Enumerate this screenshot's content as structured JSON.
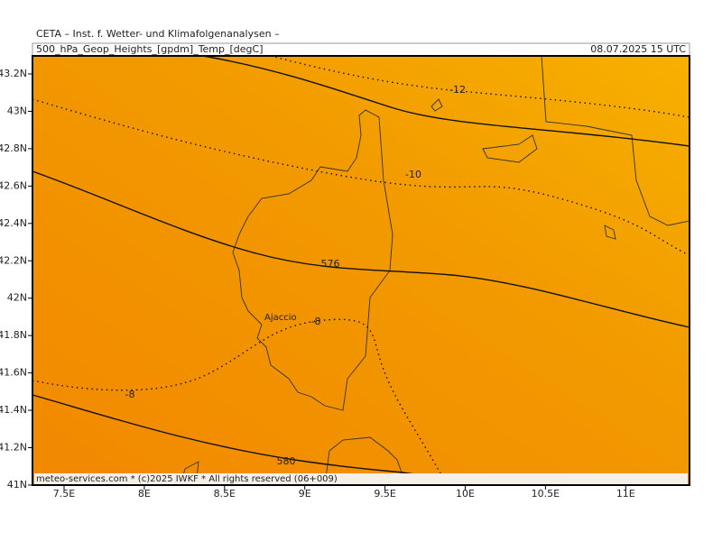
{
  "header": {
    "title": "CETA – Inst. f. Wetter- und Klimafolgenanalysen –",
    "field": "500_hPa_Geop_Heights_[gpdm]_Temp_[degC]",
    "valid_time": "08.07.2025 15 UTC"
  },
  "map": {
    "x_labels": [
      "7.5E",
      "8E",
      "8.5E",
      "9E",
      "9.5E",
      "10E",
      "10.5E",
      "11E"
    ],
    "y_labels": [
      "43.2N",
      "43N",
      "42.8N",
      "42.6N",
      "42.4N",
      "42.2N",
      "42N",
      "41.8N",
      "41.6N",
      "41.4N",
      "41.2N",
      "41N"
    ],
    "contour_labels": [
      "-12",
      "-10",
      "576",
      "-8",
      "-8",
      "580"
    ],
    "place": "Ajaccio"
  },
  "footer": {
    "credit": "meteo-services.com * (c)2025 IWKF * All rights reserved (06+009)"
  }
}
